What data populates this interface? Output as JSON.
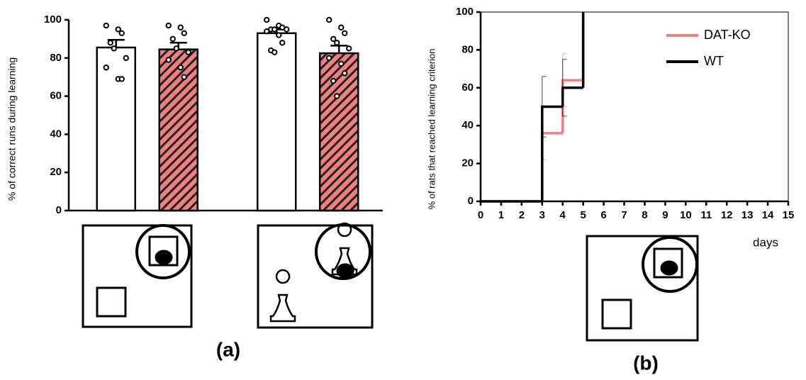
{
  "chart_data": [
    {
      "type": "bar",
      "panel": "(a)",
      "ylabel": "% of correct runs during learning",
      "categories": [
        null,
        null
      ],
      "series": [
        {
          "color": "#ffffff",
          "hatch": false,
          "values": [
            85.5,
            93
          ],
          "errors": [
            4,
            2
          ],
          "points": [
            [
              97,
              95,
              93,
              88,
              85,
              80,
              75,
              69,
              69
            ],
            [
              100,
              97,
              96,
              95,
              95,
              95,
              94,
              92,
              88,
              84,
              83
            ]
          ]
        },
        {
          "color": "#f08080",
          "hatch": true,
          "values": [
            84.5,
            82.5
          ],
          "errors": [
            3.5,
            4
          ],
          "points": [
            [
              97,
              96,
              93,
              90,
              85,
              83,
              79,
              75,
              70
            ],
            [
              100,
              96,
              93,
              90,
              88,
              85,
              80,
              77,
              72,
              68,
              60
            ]
          ]
        }
      ],
      "ylim": [
        0,
        100
      ],
      "yticks": [
        0,
        20,
        40,
        60,
        80,
        100
      ]
    },
    {
      "type": "step",
      "panel": "(b)",
      "ylabel": "% of rats that reached learning criterion",
      "xlabel": "days",
      "series": [
        {
          "name": "DAT-KO",
          "color": "#f08080",
          "x": [
            0,
            3,
            4,
            5
          ],
          "values": [
            0,
            36,
            64,
            100
          ],
          "errors": [
            null,
            14,
            14,
            null
          ]
        },
        {
          "name": "WT",
          "color": "#000000",
          "x": [
            0,
            3,
            4,
            5
          ],
          "values": [
            0,
            50,
            60,
            100
          ],
          "errors": [
            null,
            16,
            15,
            null
          ]
        }
      ],
      "xlim": [
        0,
        15
      ],
      "xticks": [
        0,
        1,
        2,
        3,
        4,
        5,
        6,
        7,
        8,
        9,
        10,
        11,
        12,
        13,
        14,
        15
      ],
      "ylim": [
        0,
        100
      ],
      "yticks": [
        0,
        20,
        40,
        60,
        80,
        100
      ],
      "legend": "upper right"
    }
  ]
}
